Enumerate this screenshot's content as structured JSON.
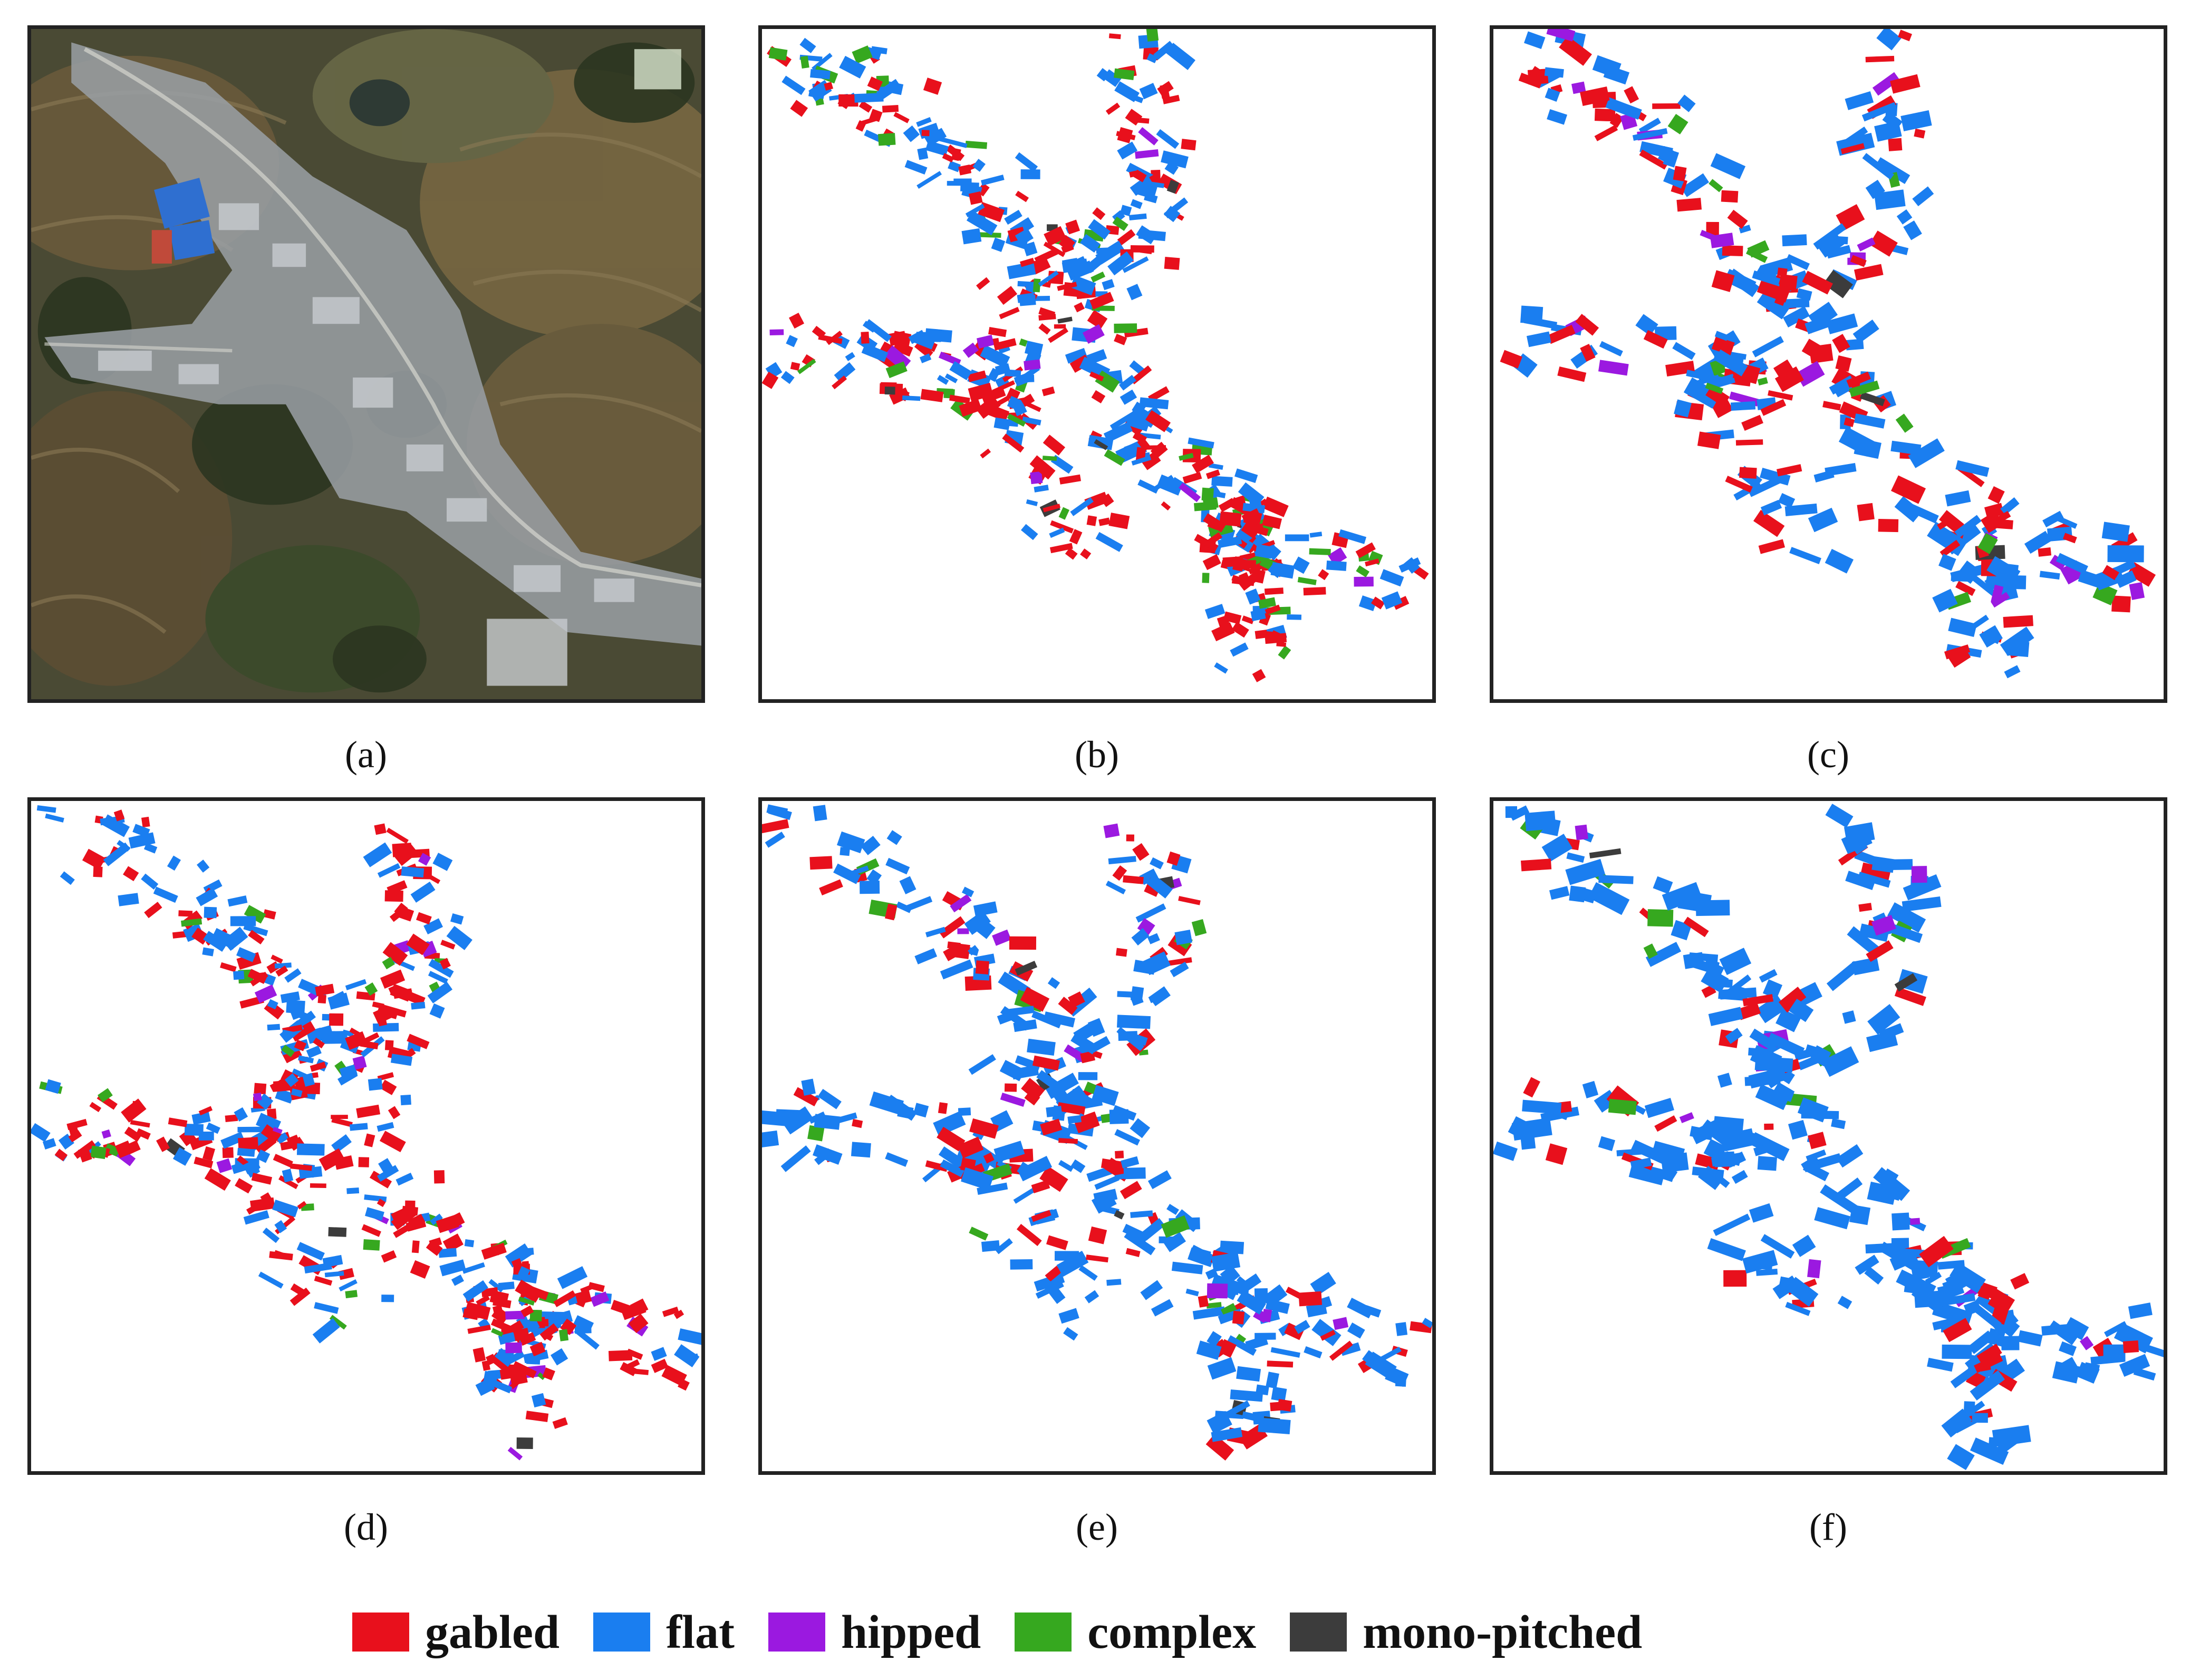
{
  "panels": [
    {
      "id": "a",
      "caption": "(a)",
      "kind": "aerial"
    },
    {
      "id": "b",
      "caption": "(b)",
      "kind": "map"
    },
    {
      "id": "c",
      "caption": "(c)",
      "kind": "map"
    },
    {
      "id": "d",
      "caption": "(d)",
      "kind": "map"
    },
    {
      "id": "e",
      "caption": "(e)",
      "kind": "map"
    },
    {
      "id": "f",
      "caption": "(f)",
      "kind": "map"
    }
  ],
  "legend": [
    {
      "label": "gabled",
      "color": "#e8101c"
    },
    {
      "label": "flat",
      "color": "#1a7ef0"
    },
    {
      "label": "hipped",
      "color": "#9b19e0"
    },
    {
      "label": "complex",
      "color": "#36a81f"
    },
    {
      "label": "mono-pitched",
      "color": "#3c3c3c"
    }
  ]
}
